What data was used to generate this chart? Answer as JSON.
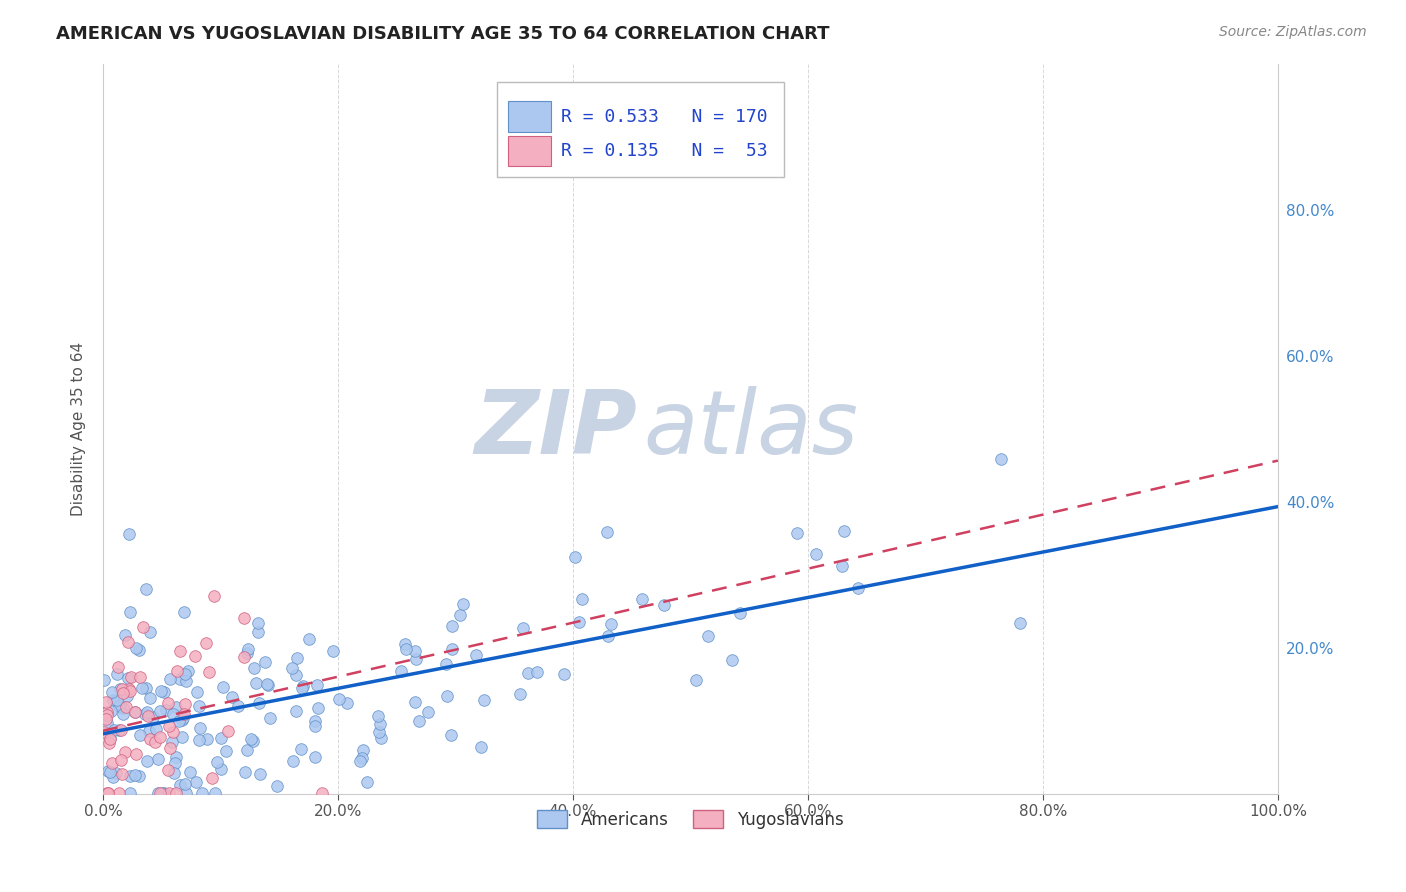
{
  "title": "AMERICAN VS YUGOSLAVIAN DISABILITY AGE 35 TO 64 CORRELATION CHART",
  "source": "Source: ZipAtlas.com",
  "ylabel": "Disability Age 35 to 64",
  "xlim": [
    0.0,
    1.0
  ],
  "ylim": [
    0.0,
    1.0
  ],
  "xticks": [
    0.0,
    0.2,
    0.4,
    0.6,
    0.8,
    1.0
  ],
  "yticks_right": [
    0.2,
    0.4,
    0.6,
    0.8
  ],
  "xticklabels": [
    "0.0%",
    "20.0%",
    "40.0%",
    "60.0%",
    "80.0%",
    "100.0%"
  ],
  "yticklabels_right": [
    "20.0%",
    "40.0%",
    "60.0%",
    "80.0%"
  ],
  "american_fill": "#adc8f0",
  "american_edge": "#6090c8",
  "yugoslav_fill": "#f4b0c0",
  "yugoslav_edge": "#d06080",
  "trendline_american": "#1060c8",
  "trendline_yugoslav": "#d04060",
  "R_american": 0.533,
  "N_american": 170,
  "R_yugoslav": 0.135,
  "N_yugoslav": 53,
  "bg_color": "#ffffff",
  "grid_color": "#d8d8d8",
  "title_color": "#222222",
  "source_color": "#888888",
  "watermark_ZIP_color": "#c8d4e4",
  "watermark_atlas_color": "#c8d4e4",
  "legend_text_color": "#2244cc",
  "seed": 42
}
